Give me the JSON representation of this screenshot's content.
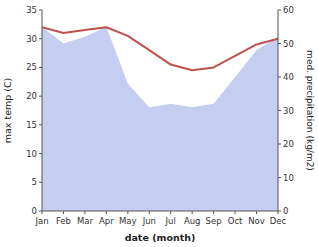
{
  "chart_data": {
    "type": "line",
    "categories": [
      "Jan",
      "Feb",
      "Mar",
      "Apr",
      "May",
      "Jun",
      "Jul",
      "Aug",
      "Sep",
      "Oct",
      "Nov",
      "Dec"
    ],
    "xlabel": "date (month)",
    "ylabel": "max temp (C)",
    "y2label": "med. precipitation (kg/m2)",
    "ylim": [
      0,
      35
    ],
    "yticks": [
      0,
      5,
      10,
      15,
      20,
      25,
      30,
      35
    ],
    "y2lim": [
      0,
      60
    ],
    "y2ticks": [
      0,
      10,
      20,
      30,
      40,
      50,
      60
    ],
    "grid": false,
    "series": [
      {
        "type": "area",
        "axis": "y2",
        "color": "#c5cef0",
        "values": [
          55,
          50,
          52,
          55,
          38,
          31,
          32,
          31,
          32,
          40,
          48,
          52
        ]
      },
      {
        "type": "line",
        "color": "#c0504d",
        "values": [
          32.0,
          31.0,
          31.5,
          32.0,
          30.5,
          28.0,
          25.5,
          24.5,
          25.0,
          27.0,
          29.0,
          30.0
        ]
      }
    ]
  }
}
